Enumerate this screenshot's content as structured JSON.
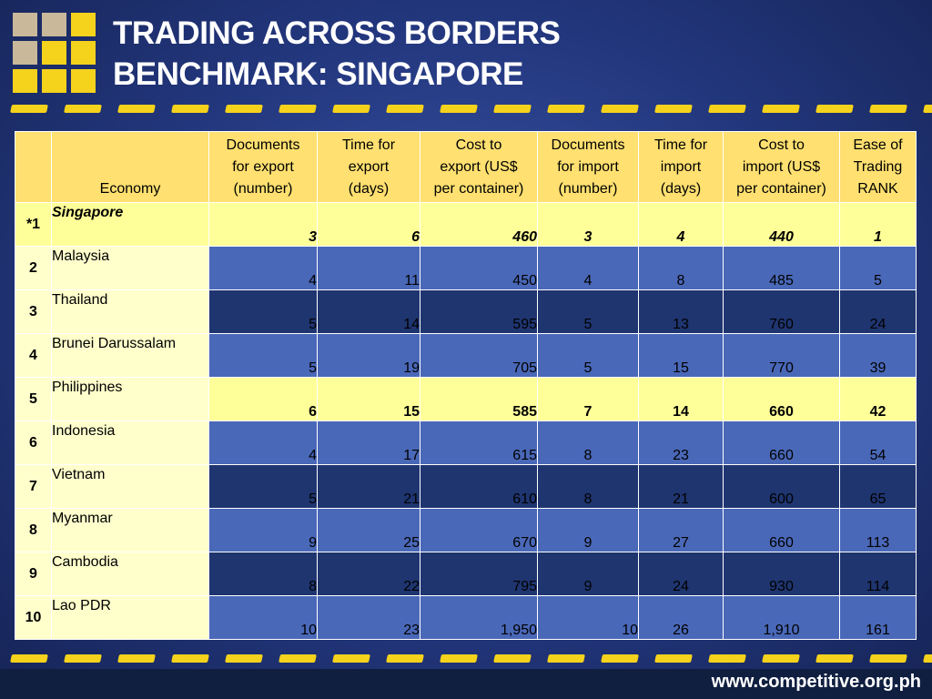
{
  "title_line1": "TRADING ACROSS BORDERS",
  "title_line2": "BENCHMARK: SINGAPORE",
  "colors": {
    "accent": "#f5d21c",
    "background": "#22367c",
    "header": "#ffe070",
    "highlight": "#ffff99"
  },
  "table": {
    "headers": [
      "",
      "Economy",
      "Documents for export (number)",
      "Time for export (days)",
      "Cost to export (US$ per container)",
      "Documents for import (number)",
      "Time for import (days)",
      "Cost to import (US$ per container)",
      "Ease of Trading RANK"
    ],
    "header_lines": [
      [
        ""
      ],
      [
        "Economy"
      ],
      [
        "Documents",
        "for export",
        "(number)"
      ],
      [
        "Time for",
        "export",
        "(days)"
      ],
      [
        "Cost to",
        "export (US$",
        "per container)"
      ],
      [
        "Documents",
        "for import",
        "(number)"
      ],
      [
        "Time for",
        "import",
        "(days)"
      ],
      [
        "Cost to",
        "import (US$",
        "per container)"
      ],
      [
        "Ease of",
        "Trading",
        "RANK"
      ]
    ],
    "rows": [
      {
        "rank": "*1",
        "economy": "Singapore",
        "values": [
          "3",
          "6",
          "460",
          "3",
          "4",
          "440",
          "1"
        ]
      },
      {
        "rank": "2",
        "economy": "Malaysia",
        "values": [
          "4",
          "11",
          "450",
          "4",
          "8",
          "485",
          "5"
        ]
      },
      {
        "rank": "3",
        "economy": "Thailand",
        "values": [
          "5",
          "14",
          "595",
          "5",
          "13",
          "760",
          "24"
        ]
      },
      {
        "rank": "4",
        "economy": "Brunei Darussalam",
        "values": [
          "5",
          "19",
          "705",
          "5",
          "15",
          "770",
          "39"
        ]
      },
      {
        "rank": "5",
        "economy": "Philippines",
        "values": [
          "6",
          "15",
          "585",
          "7",
          "14",
          "660",
          "42"
        ]
      },
      {
        "rank": "6",
        "economy": "Indonesia",
        "values": [
          "4",
          "17",
          "615",
          "8",
          "23",
          "660",
          "54"
        ]
      },
      {
        "rank": "7",
        "economy": "Vietnam",
        "values": [
          "5",
          "21",
          "610",
          "8",
          "21",
          "600",
          "65"
        ]
      },
      {
        "rank": "8",
        "economy": "Myanmar",
        "values": [
          "9",
          "25",
          "670",
          "9",
          "27",
          "660",
          "113"
        ]
      },
      {
        "rank": "9",
        "economy": "Cambodia",
        "values": [
          "8",
          "22",
          "795",
          "9",
          "24",
          "930",
          "114"
        ]
      },
      {
        "rank": "10",
        "economy": "Lao PDR",
        "values": [
          "10",
          "23",
          "1,950",
          "10",
          "26",
          "1,910",
          "161"
        ]
      }
    ]
  },
  "footer_url": "www.competitive.org.ph",
  "logo_icon": "grid-logo-icon"
}
